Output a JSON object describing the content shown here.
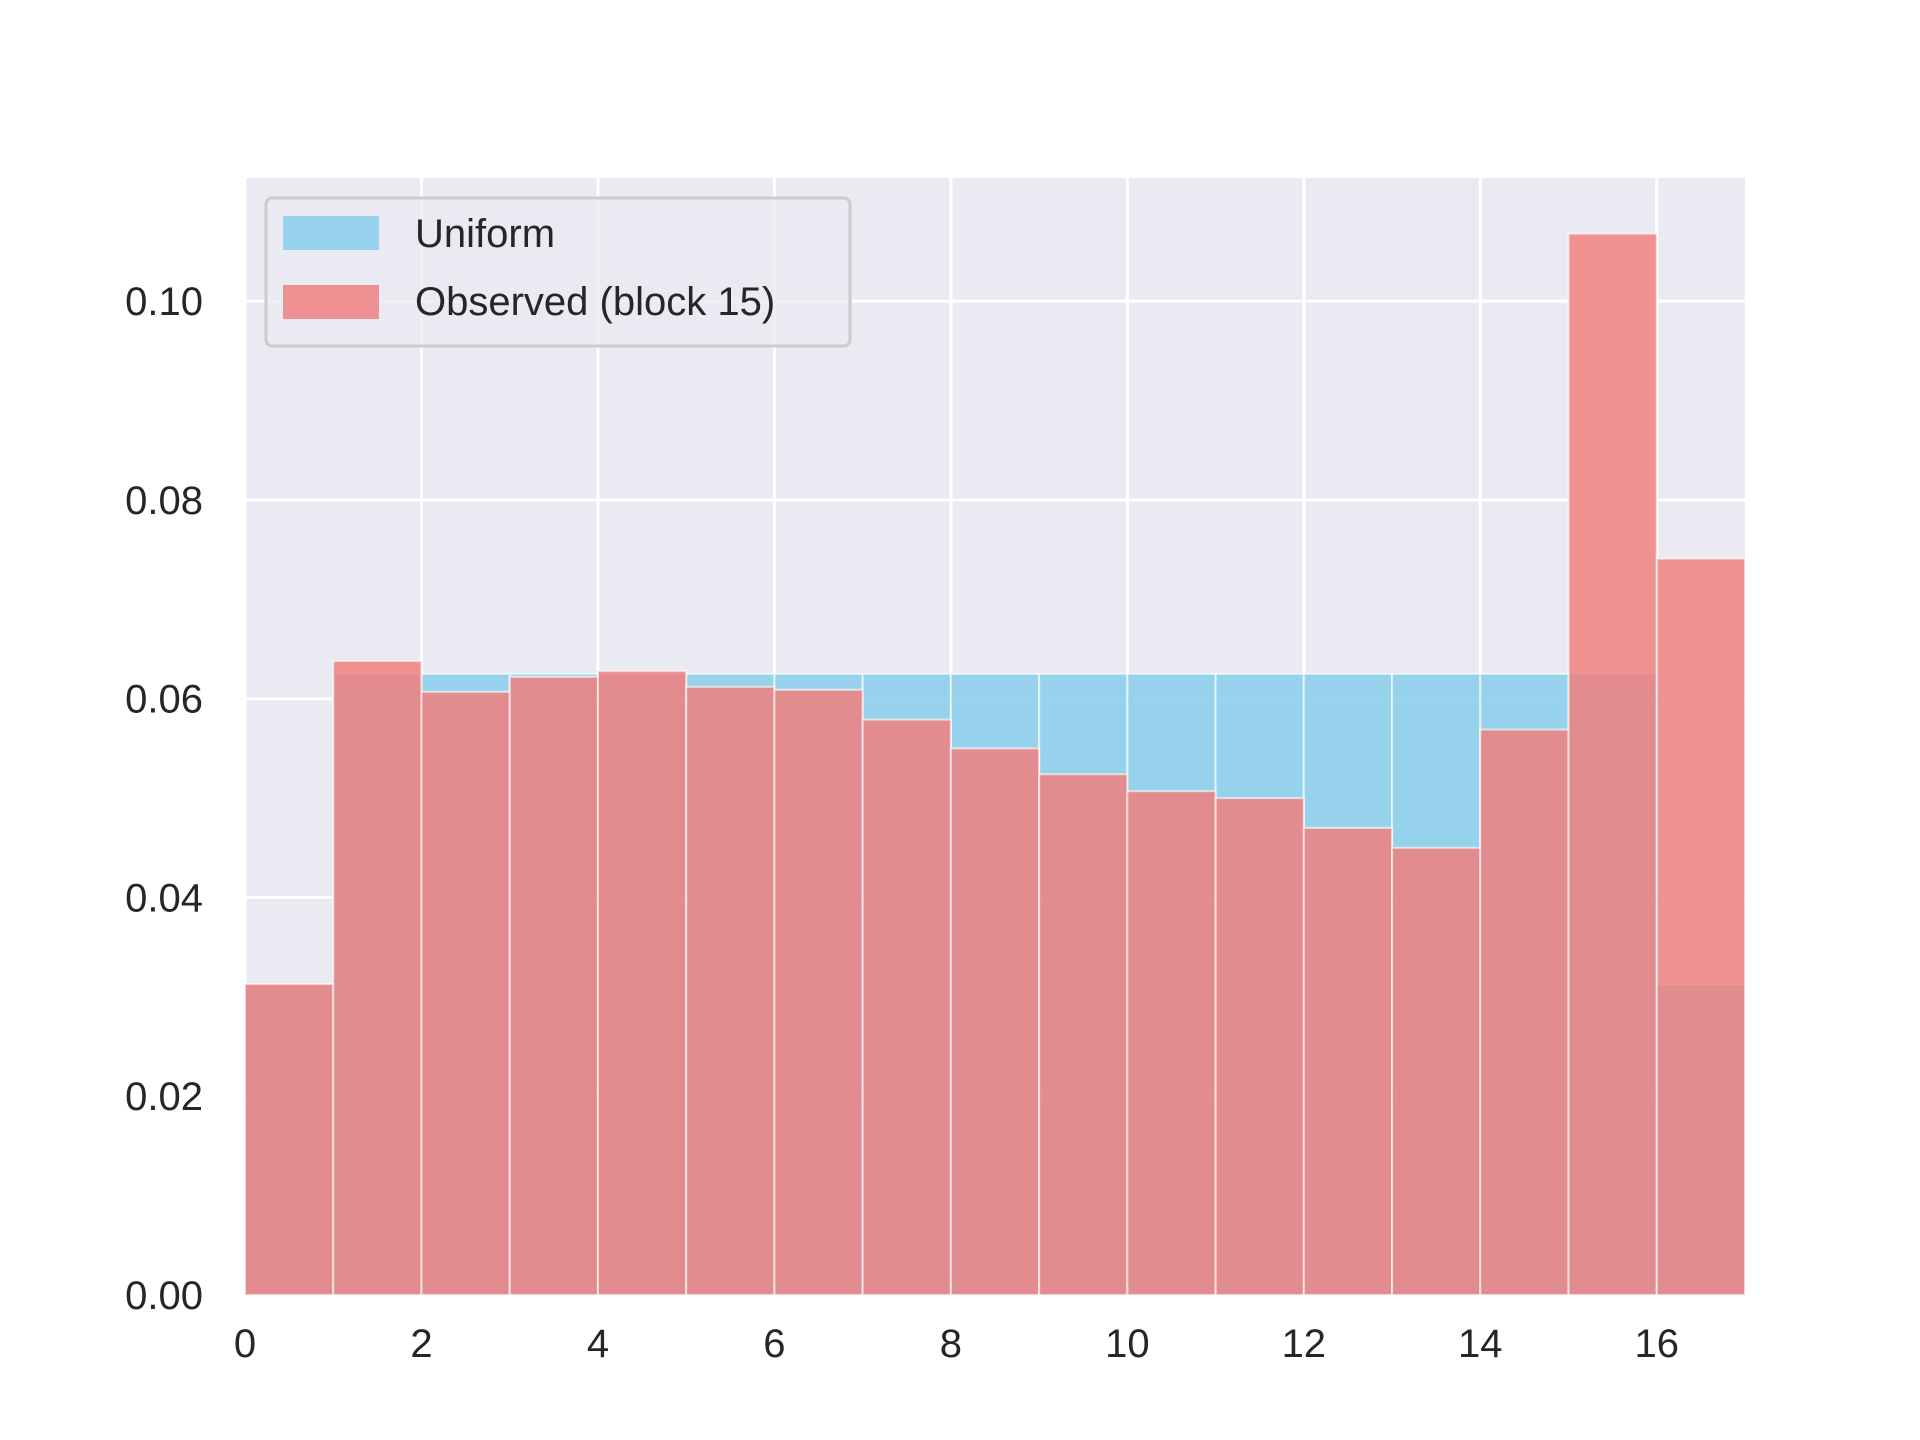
{
  "chart_data": {
    "type": "bar",
    "bin_edges": [
      0,
      1,
      2,
      3,
      4,
      5,
      6,
      7,
      8,
      9,
      10,
      11,
      12,
      13,
      14,
      15,
      16,
      17
    ],
    "series": [
      {
        "name": "Uniform",
        "color": "#87CEEB",
        "values": [
          0.03125,
          0.0625,
          0.0625,
          0.0625,
          0.0625,
          0.0625,
          0.0625,
          0.0625,
          0.0625,
          0.0625,
          0.0625,
          0.0625,
          0.0625,
          0.0625,
          0.0625,
          0.0625,
          0.03125
        ]
      },
      {
        "name": "Observed (block 15)",
        "color": "#F08080",
        "values": [
          0.0313,
          0.0638,
          0.0607,
          0.0622,
          0.0628,
          0.0612,
          0.0609,
          0.0579,
          0.055,
          0.0524,
          0.0507,
          0.05,
          0.047,
          0.045,
          0.0569,
          0.1068,
          0.0741
        ]
      }
    ],
    "xlim": [
      0,
      17
    ],
    "ylim": [
      0,
      0.1124
    ],
    "xticks": [
      "0",
      "2",
      "4",
      "6",
      "8",
      "10",
      "12",
      "14",
      "16"
    ],
    "xtick_values": [
      0,
      2,
      4,
      6,
      8,
      10,
      12,
      14,
      16
    ],
    "yticks": [
      "0.00",
      "0.02",
      "0.04",
      "0.06",
      "0.08",
      "0.10"
    ],
    "ytick_values": [
      0,
      0.02,
      0.04,
      0.06,
      0.08,
      0.1
    ],
    "grid": true,
    "legend_position": "upper-left",
    "background_color": "#EAEAF2"
  }
}
